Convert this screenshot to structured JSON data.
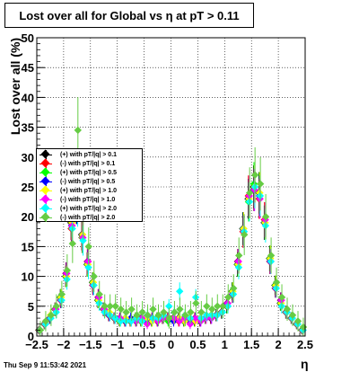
{
  "title": "Lost over all for Global vs   η at pT > 0.11",
  "footer": "Thu Sep  9 11:53:42 2021",
  "chart_data": {
    "type": "scatter",
    "title": "Lost over all for Global vs   η at pT > 0.11",
    "xlabel": "η",
    "ylabel": "Lost over all (%)",
    "xlim": [
      -2.5,
      2.5
    ],
    "ylim": [
      0,
      50
    ],
    "xticks": [
      "−2.5",
      "−2",
      "−1.5",
      "−1",
      "−0.5",
      "0",
      "0.5",
      "1",
      "1.5",
      "2",
      "2.5"
    ],
    "yticks": [
      "0",
      "5",
      "10",
      "15",
      "20",
      "25",
      "30",
      "35",
      "40",
      "45",
      "50"
    ],
    "grid": true,
    "legend_position": "left-middle",
    "x": [
      -2.45,
      -2.35,
      -2.25,
      -2.15,
      -2.05,
      -1.95,
      -1.85,
      -1.75,
      -1.65,
      -1.55,
      -1.45,
      -1.35,
      -1.25,
      -1.15,
      -1.05,
      -0.95,
      -0.85,
      -0.75,
      -0.65,
      -0.55,
      -0.45,
      -0.35,
      -0.25,
      -0.15,
      -0.05,
      0.05,
      0.15,
      0.25,
      0.35,
      0.45,
      0.55,
      0.65,
      0.75,
      0.85,
      0.95,
      1.05,
      1.15,
      1.25,
      1.35,
      1.45,
      1.55,
      1.65,
      1.75,
      1.85,
      1.95,
      2.05,
      2.15,
      2.25,
      2.35,
      2.45
    ],
    "series": [
      {
        "name": "(+) with pT/|q| > 0.1",
        "color": "#000000",
        "values": [
          1.0,
          2.0,
          3.0,
          4.5,
          6.5,
          10.0,
          19.0,
          22.0,
          17.0,
          12.0,
          9.0,
          6.0,
          4.5,
          3.5,
          3.0,
          2.5,
          2.5,
          2.5,
          3.0,
          2.5,
          2.5,
          2.5,
          3.0,
          3.0,
          3.0,
          3.0,
          3.0,
          2.5,
          2.5,
          2.5,
          2.5,
          3.0,
          3.0,
          3.5,
          4.0,
          5.0,
          7.5,
          12.0,
          18.0,
          23.0,
          25.0,
          24.0,
          19.0,
          13.0,
          8.5,
          5.5,
          4.0,
          3.0,
          2.0,
          1.0
        ]
      },
      {
        "name": "(-) with pT/|q| > 0.1",
        "color": "#ff0000",
        "values": [
          1.0,
          2.0,
          3.0,
          4.5,
          6.0,
          10.5,
          18.0,
          23.0,
          16.5,
          12.5,
          8.5,
          6.5,
          4.5,
          3.5,
          3.0,
          3.0,
          2.5,
          2.5,
          2.5,
          3.0,
          2.5,
          3.0,
          2.5,
          3.0,
          3.0,
          3.0,
          2.5,
          3.0,
          2.5,
          3.0,
          2.5,
          3.0,
          3.0,
          3.5,
          4.0,
          5.5,
          7.0,
          12.5,
          17.5,
          23.5,
          24.5,
          23.0,
          19.5,
          12.5,
          8.0,
          6.0,
          4.0,
          3.0,
          2.0,
          1.0
        ]
      },
      {
        "name": "(+) with pT/|q| > 0.5",
        "color": "#00ff00",
        "values": [
          1.0,
          2.0,
          3.0,
          4.5,
          6.5,
          10.0,
          19.5,
          22.5,
          16.5,
          12.0,
          9.0,
          6.0,
          4.5,
          4.0,
          3.0,
          2.5,
          3.0,
          2.5,
          3.0,
          2.5,
          3.0,
          2.5,
          3.0,
          3.0,
          2.5,
          3.0,
          3.0,
          2.5,
          3.0,
          2.5,
          3.0,
          3.0,
          3.5,
          3.5,
          4.0,
          5.0,
          7.5,
          12.0,
          18.0,
          22.5,
          25.5,
          24.0,
          19.0,
          13.0,
          8.5,
          5.5,
          4.0,
          3.0,
          2.0,
          1.0
        ]
      },
      {
        "name": "(-) with pT/|q| > 0.5",
        "color": "#0000ff",
        "values": [
          1.0,
          2.0,
          3.0,
          4.5,
          6.0,
          10.5,
          18.5,
          22.0,
          17.0,
          12.5,
          8.5,
          6.5,
          4.5,
          3.5,
          3.0,
          3.0,
          2.5,
          3.0,
          2.5,
          3.0,
          2.5,
          3.0,
          2.5,
          3.0,
          3.0,
          2.5,
          3.0,
          3.0,
          2.5,
          3.0,
          2.5,
          3.0,
          3.0,
          3.5,
          4.0,
          5.5,
          7.0,
          12.5,
          18.0,
          23.0,
          24.5,
          23.5,
          19.0,
          12.5,
          8.0,
          6.0,
          4.0,
          3.0,
          2.0,
          1.0
        ]
      },
      {
        "name": "(+) with pT/|q| > 1.0",
        "color": "#ffff00",
        "values": [
          1.0,
          2.0,
          3.5,
          4.5,
          6.5,
          10.0,
          19.0,
          22.5,
          17.0,
          12.0,
          9.0,
          6.0,
          4.5,
          4.0,
          3.0,
          2.5,
          3.0,
          2.5,
          3.0,
          2.5,
          3.0,
          2.5,
          3.0,
          3.0,
          3.0,
          3.0,
          3.0,
          2.5,
          3.0,
          2.5,
          3.0,
          3.0,
          3.5,
          3.5,
          4.0,
          5.0,
          7.5,
          12.0,
          18.0,
          23.0,
          25.0,
          24.0,
          19.0,
          13.0,
          8.5,
          5.5,
          4.0,
          3.0,
          2.0,
          1.0
        ]
      },
      {
        "name": "(-) with pT/|q| > 1.0",
        "color": "#ff00ff",
        "values": [
          1.0,
          2.0,
          3.0,
          4.5,
          6.0,
          10.5,
          18.5,
          23.0,
          16.5,
          12.5,
          8.5,
          6.5,
          4.5,
          3.5,
          3.0,
          3.0,
          2.5,
          2.5,
          2.5,
          3.0,
          2.0,
          3.0,
          2.5,
          3.0,
          3.0,
          3.0,
          2.5,
          3.0,
          2.0,
          3.0,
          2.5,
          3.0,
          3.0,
          3.5,
          4.0,
          5.5,
          7.0,
          12.5,
          17.5,
          23.5,
          24.5,
          23.0,
          19.5,
          12.5,
          8.0,
          6.0,
          4.0,
          3.0,
          2.0,
          1.0
        ]
      },
      {
        "name": "(+) with pT/|q| > 2.0",
        "color": "#00ffff",
        "values": [
          1.0,
          2.0,
          3.0,
          4.0,
          6.0,
          9.5,
          18.0,
          21.5,
          16.0,
          11.5,
          8.5,
          5.5,
          4.0,
          3.5,
          3.0,
          2.5,
          2.5,
          2.5,
          3.0,
          2.5,
          3.5,
          3.0,
          3.0,
          3.5,
          5.0,
          4.0,
          7.5,
          3.5,
          3.0,
          6.5,
          3.0,
          3.5,
          3.5,
          3.5,
          4.0,
          5.0,
          7.0,
          11.5,
          17.5,
          22.5,
          25.0,
          23.5,
          18.5,
          12.5,
          8.0,
          5.0,
          4.0,
          3.0,
          2.0,
          1.0
        ]
      },
      {
        "name": "(-) with pT/|q| > 2.0",
        "color": "#66cc44",
        "values": [
          1.0,
          2.5,
          3.5,
          5.0,
          7.0,
          11.0,
          15.5,
          34.5,
          20.0,
          15.0,
          10.0,
          7.0,
          5.0,
          5.0,
          5.0,
          4.5,
          4.0,
          4.5,
          3.5,
          4.0,
          3.5,
          4.5,
          3.5,
          4.0,
          3.0,
          4.0,
          4.5,
          3.5,
          4.0,
          5.5,
          4.0,
          5.0,
          4.5,
          5.0,
          5.0,
          6.5,
          8.0,
          13.5,
          17.0,
          24.0,
          27.0,
          25.5,
          20.0,
          13.5,
          9.0,
          6.5,
          4.5,
          3.5,
          2.5,
          1.5
        ]
      }
    ]
  }
}
